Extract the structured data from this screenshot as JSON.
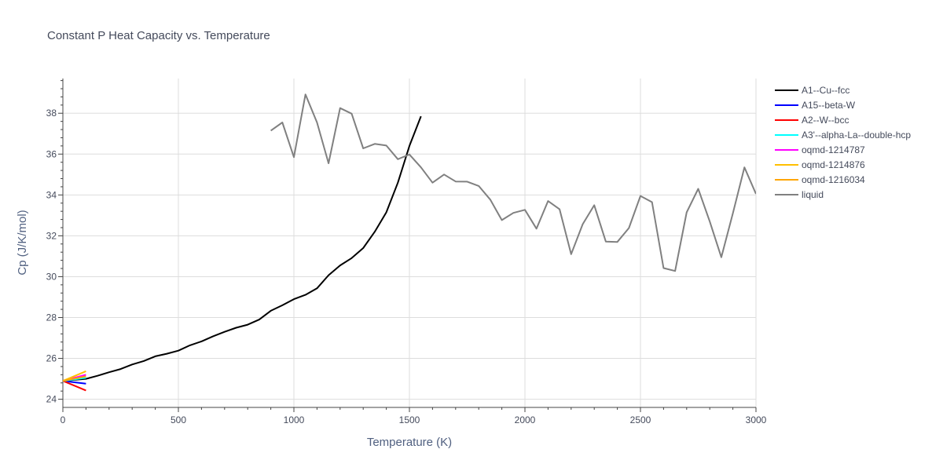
{
  "chart_data": {
    "type": "line",
    "title": "Constant P Heat Capacity vs. Temperature",
    "xlabel": "Temperature (K)",
    "ylabel": "Cp (J/K/mol)",
    "xlim": [
      0,
      3000
    ],
    "ylim": [
      23.6,
      39.7
    ],
    "xticks": [
      0,
      500,
      1000,
      1500,
      2000,
      2500,
      3000
    ],
    "yticks": [
      24,
      26,
      28,
      30,
      32,
      34,
      36,
      38
    ],
    "grid": true,
    "legend_position": "right",
    "series": [
      {
        "name": "A1--Cu--fcc",
        "color": "#000000",
        "x": [
          0,
          50,
          100,
          150,
          200,
          250,
          300,
          350,
          400,
          450,
          500,
          550,
          600,
          650,
          700,
          750,
          800,
          850,
          900,
          950,
          1000,
          1050,
          1100,
          1150,
          1200,
          1250,
          1300,
          1350,
          1400,
          1450,
          1500,
          1550
        ],
        "y": [
          24.9,
          24.95,
          25.0,
          25.15,
          25.32,
          25.48,
          25.7,
          25.87,
          26.1,
          26.23,
          26.38,
          26.64,
          26.83,
          27.08,
          27.3,
          27.5,
          27.65,
          27.9,
          28.33,
          28.6,
          28.9,
          29.11,
          29.43,
          30.07,
          30.55,
          30.91,
          31.4,
          32.2,
          33.15,
          34.6,
          36.4,
          37.85
        ]
      },
      {
        "name": "A15--beta-W",
        "color": "#0000ff",
        "x": [
          0,
          100
        ],
        "y": [
          24.9,
          24.76
        ]
      },
      {
        "name": "A2--W--bcc",
        "color": "#ff0000",
        "x": [
          0,
          100
        ],
        "y": [
          24.9,
          24.43
        ]
      },
      {
        "name": "A3'--alpha-La--double-hcp",
        "color": "#00ffff",
        "x": [
          0,
          100
        ],
        "y": [
          24.9,
          25.05
        ]
      },
      {
        "name": "oqmd-1214787",
        "color": "#ff00ff",
        "x": [
          0,
          100
        ],
        "y": [
          24.9,
          25.2
        ]
      },
      {
        "name": "oqmd-1214876",
        "color": "#ffbf00",
        "x": [
          0,
          100
        ],
        "y": [
          24.9,
          25.37
        ]
      },
      {
        "name": "oqmd-1216034",
        "color": "#ffa500",
        "x": [
          0,
          100
        ],
        "y": [
          24.9,
          25.12
        ]
      },
      {
        "name": "liquid",
        "color": "#808080",
        "x": [
          900,
          950,
          1000,
          1050,
          1100,
          1150,
          1200,
          1250,
          1300,
          1350,
          1400,
          1450,
          1500,
          1550,
          1600,
          1650,
          1700,
          1750,
          1800,
          1850,
          1900,
          1950,
          2000,
          2050,
          2100,
          2150,
          2200,
          2250,
          2300,
          2350,
          2400,
          2450,
          2500,
          2550,
          2600,
          2650,
          2700,
          2750,
          2800,
          2850,
          2900,
          2950,
          3000
        ],
        "y": [
          37.15,
          37.55,
          35.85,
          38.92,
          37.55,
          35.55,
          38.25,
          37.98,
          36.28,
          36.5,
          36.42,
          35.75,
          35.98,
          35.35,
          34.6,
          35.0,
          34.66,
          34.65,
          34.44,
          33.77,
          32.77,
          33.12,
          33.27,
          32.35,
          33.7,
          33.3,
          31.1,
          32.57,
          33.5,
          31.72,
          31.7,
          32.38,
          33.95,
          33.65,
          30.42,
          30.28,
          33.15,
          34.3,
          32.7,
          30.95,
          33.1,
          35.35,
          34.05
        ]
      }
    ]
  }
}
